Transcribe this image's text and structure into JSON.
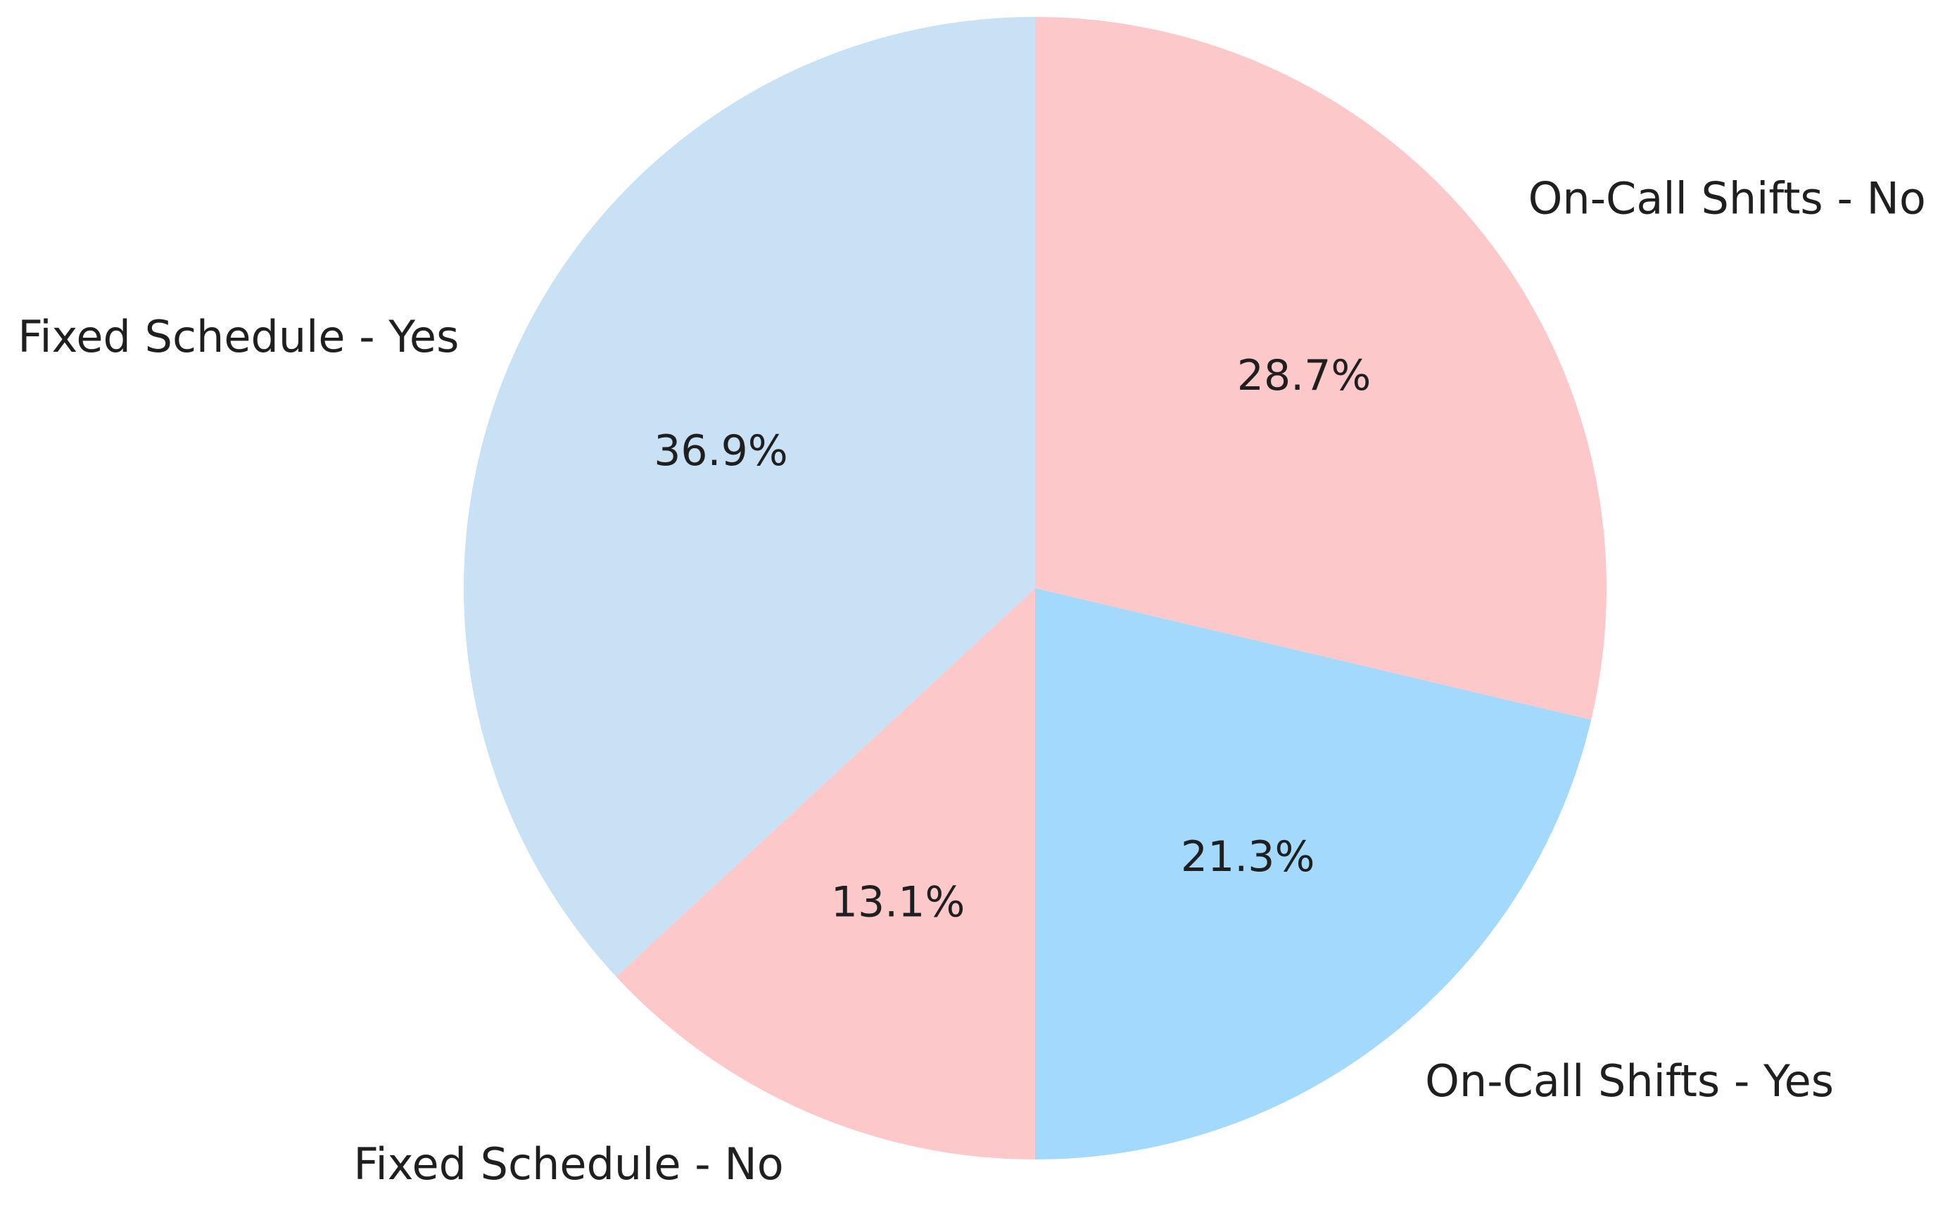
{
  "chart_data": {
    "type": "pie",
    "title": "",
    "legend": "none",
    "direction": "clockwise",
    "start_angle": "12-oclock",
    "label_distance": 1.1,
    "pct_distance": 0.6,
    "text_color": "#1f1f1f",
    "background_color": "#ffffff",
    "slices": [
      {
        "label": "On-Call Shifts - No",
        "value": 28.7,
        "pct_text": "28.7%",
        "color": "#fdc8ca"
      },
      {
        "label": "On-Call Shifts - Yes",
        "value": 21.3,
        "pct_text": "21.3%",
        "color": "#a2d9fd"
      },
      {
        "label": "Fixed Schedule - No",
        "value": 13.1,
        "pct_text": "13.1%",
        "color": "#fdc8ca"
      },
      {
        "label": "Fixed Schedule - Yes",
        "value": 36.9,
        "pct_text": "36.9%",
        "color": "#c9e1f4"
      }
    ]
  }
}
